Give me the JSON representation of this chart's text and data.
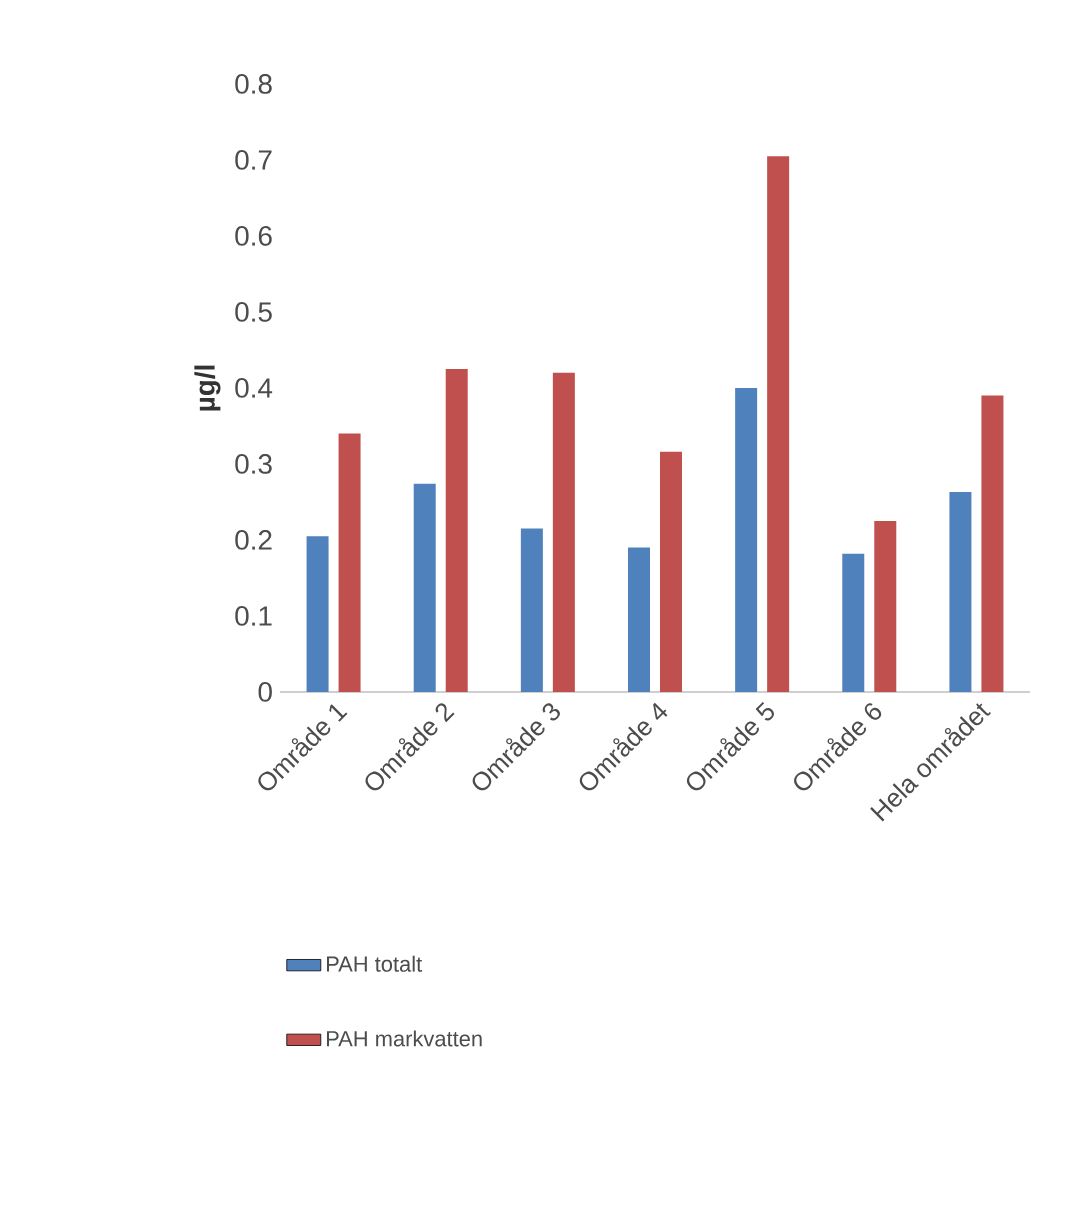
{
  "chart_data": {
    "type": "bar",
    "ylabel": "µg/l",
    "categories": [
      "Område 1",
      "Område 2",
      "Område 3",
      "Område 4",
      "Område 5",
      "Område 6",
      "Hela området"
    ],
    "series": [
      {
        "name": "PAH totalt",
        "color": "#4f81bd",
        "values": [
          0.205,
          0.274,
          0.215,
          0.19,
          0.4,
          0.182,
          0.263
        ]
      },
      {
        "name": "PAH markvatten",
        "color": "#c0504d",
        "values": [
          0.34,
          0.425,
          0.42,
          0.316,
          0.705,
          0.225,
          0.39
        ]
      }
    ],
    "ylim": [
      0,
      0.8
    ],
    "yticks": [
      0,
      0.1,
      0.2,
      0.3,
      0.4,
      0.5,
      0.6,
      0.7,
      0.8
    ],
    "grid": false,
    "legend": "bottom"
  }
}
